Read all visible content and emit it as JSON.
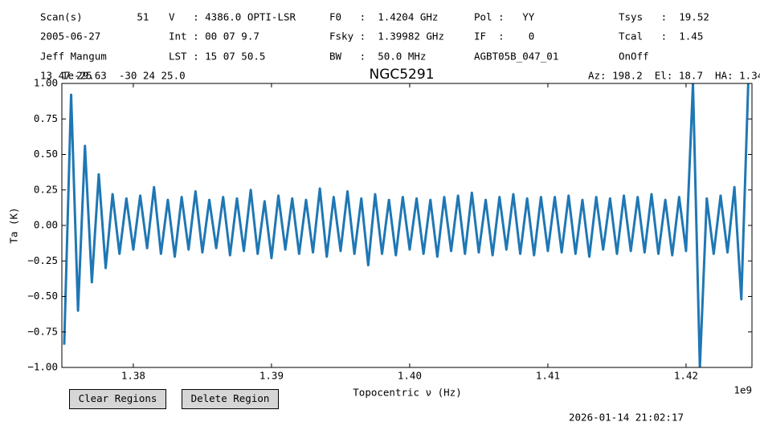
{
  "chart_data": {
    "type": "line",
    "title": "NGC5291",
    "header_columns": [
      [
        "Scan(s)         51",
        "2005-06-27",
        "Jeff Mangum"
      ],
      [
        "V   : 4386.0 OPTI-LSR",
        "Int : 00 07 9.7",
        "LST : 15 07 50.5"
      ],
      [
        "F0   :  1.4204 GHz",
        "Fsky :  1.39982 GHz",
        "BW   :  50.0 MHz"
      ],
      [
        "Pol :   YY",
        "IF  :    0",
        "AGBT05B_047_01"
      ],
      [
        "Tsys   :  19.52",
        "Tcal   :  1.45",
        "OnOff"
      ]
    ],
    "position": "13 47 29.63  -30 24 25.0",
    "top_offset": "1e-25",
    "pointing": "Az: 198.2  El: 18.7  HA: 1.34",
    "x_label": "Topocentric ν (Hz)",
    "y_label": "Ta (K)",
    "x_offset": "1e9",
    "timestamp": "2026-01-14 21:02:17",
    "buttons": [
      "Clear Regions",
      "Delete Region"
    ],
    "color": "#1f77b4",
    "xlim": [
      1374830000,
      1424770000
    ],
    "ylim": [
      -1,
      1
    ],
    "xticks": [
      {
        "value": 1380000000,
        "label": "1.38"
      },
      {
        "value": 1390000000,
        "label": "1.39"
      },
      {
        "value": 1400000000,
        "label": "1.40"
      },
      {
        "value": 1410000000,
        "label": "1.41"
      },
      {
        "value": 1420000000,
        "label": "1.42"
      }
    ],
    "yticks": [
      {
        "value": 1,
        "label": "1.00"
      },
      {
        "value": 0.75,
        "label": "0.75"
      },
      {
        "value": 0.5,
        "label": "0.50"
      },
      {
        "value": 0.25,
        "label": "0.25"
      },
      {
        "value": 0,
        "label": "0.00"
      },
      {
        "value": -0.25,
        "label": "−0.25"
      },
      {
        "value": -0.5,
        "label": "−0.50"
      },
      {
        "value": -0.75,
        "label": "−0.75"
      },
      {
        "value": -1,
        "label": "−1.00"
      }
    ],
    "x": [
      1375000000,
      1375500000,
      1376000000,
      1376500000,
      1377000000,
      1377500000,
      1378000000,
      1378500000,
      1379000000,
      1379500000,
      1380000000,
      1380500000,
      1381000000,
      1381500000,
      1382000000,
      1382500000,
      1383000000,
      1383500000,
      1384000000,
      1384500000,
      1385000000,
      1385500000,
      1386000000,
      1386500000,
      1387000000,
      1387500000,
      1388000000,
      1388500000,
      1389000000,
      1389500000,
      1390000000,
      1390500000,
      1391000000,
      1391500000,
      1392000000,
      1392500000,
      1393000000,
      1393500000,
      1394000000,
      1394500000,
      1395000000,
      1395500000,
      1396000000,
      1396500000,
      1397000000,
      1397500000,
      1398000000,
      1398500000,
      1399000000,
      1399500000,
      1400000000,
      1400500000,
      1401000000,
      1401500000,
      1402000000,
      1402500000,
      1403000000,
      1403500000,
      1404000000,
      1404500000,
      1405000000,
      1405500000,
      1406000000,
      1406500000,
      1407000000,
      1407500000,
      1408000000,
      1408500000,
      1409000000,
      1409500000,
      1410000000,
      1410500000,
      1411000000,
      1411500000,
      1412000000,
      1412500000,
      1413000000,
      1413500000,
      1414000000,
      1414500000,
      1415000000,
      1415500000,
      1416000000,
      1416500000,
      1417000000,
      1417500000,
      1418000000,
      1418500000,
      1419000000,
      1419500000,
      1420000000,
      1420500000,
      1421000000,
      1421500000,
      1422000000,
      1422500000,
      1423000000,
      1423500000,
      1424000000,
      1424500000
    ],
    "values": [
      -0.84,
      0.92,
      -0.6,
      0.56,
      -0.4,
      0.36,
      -0.3,
      0.22,
      -0.2,
      0.19,
      -0.17,
      0.21,
      -0.16,
      0.27,
      -0.2,
      0.18,
      -0.22,
      0.2,
      -0.17,
      0.24,
      -0.19,
      0.18,
      -0.16,
      0.2,
      -0.21,
      0.19,
      -0.18,
      0.25,
      -0.2,
      0.17,
      -0.23,
      0.21,
      -0.17,
      0.19,
      -0.2,
      0.18,
      -0.19,
      0.26,
      -0.22,
      0.2,
      -0.18,
      0.24,
      -0.2,
      0.19,
      -0.28,
      0.22,
      -0.2,
      0.18,
      -0.21,
      0.2,
      -0.17,
      0.19,
      -0.2,
      0.18,
      -0.22,
      0.2,
      -0.18,
      0.21,
      -0.2,
      0.23,
      -0.19,
      0.18,
      -0.21,
      0.2,
      -0.17,
      0.22,
      -0.2,
      0.19,
      -0.21,
      0.2,
      -0.18,
      0.2,
      -0.19,
      0.21,
      -0.2,
      0.18,
      -0.22,
      0.2,
      -0.17,
      0.19,
      -0.2,
      0.21,
      -0.18,
      0.2,
      -0.19,
      0.22,
      -0.2,
      0.18,
      -0.21,
      0.2,
      -0.18,
      1.0,
      -1.0,
      0.19,
      -0.2,
      0.21,
      -0.19,
      0.27,
      -0.52,
      1.0
    ]
  }
}
